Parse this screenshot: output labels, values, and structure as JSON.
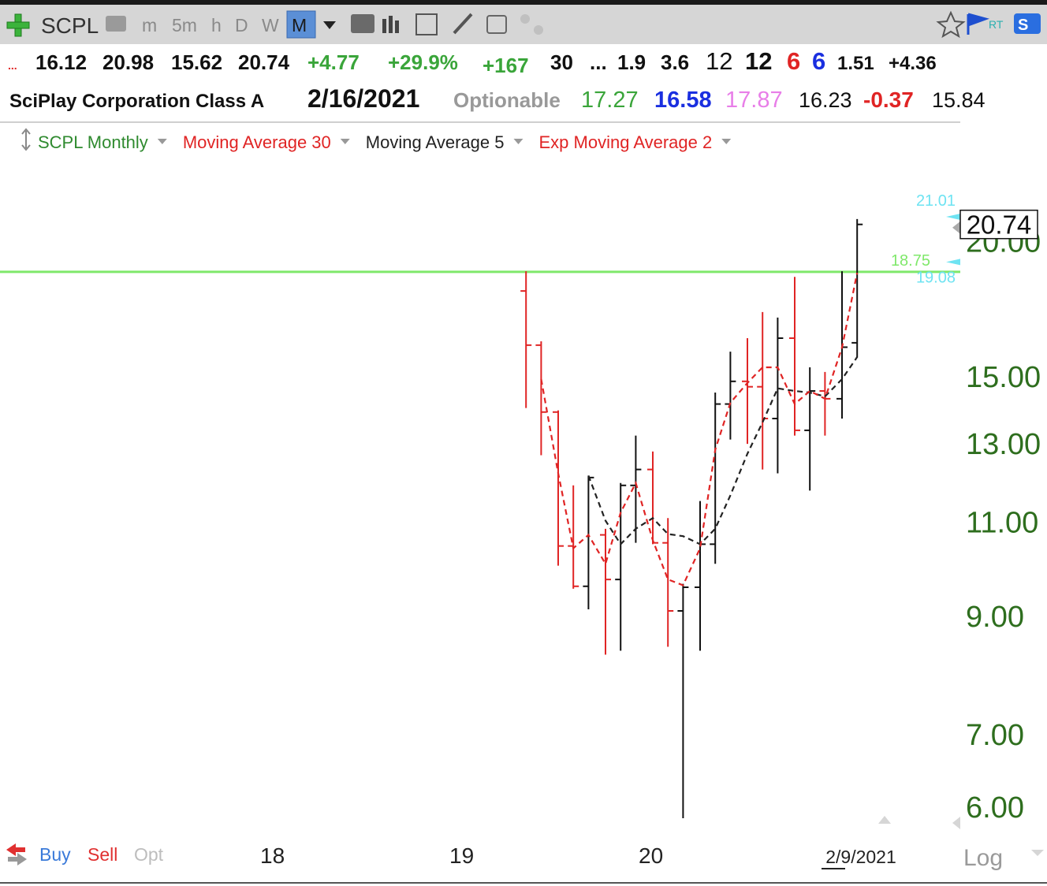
{
  "toolbar": {
    "symbol": "SCPL",
    "timeframes": [
      "m",
      "5m",
      "h",
      "D",
      "W",
      "M"
    ],
    "selected": 5,
    "rt": "RT"
  },
  "quote": {
    "line1": [
      "...",
      "16.12",
      "20.98",
      "15.62",
      "20.74",
      "+4.77",
      "+29.9%",
      "+167",
      "30",
      "...",
      "1.9",
      "3.6",
      "12",
      "12",
      "6",
      "6",
      "1.51",
      "+4.36"
    ],
    "line2": [
      "SciPlay Corporation Class A",
      "2/16/2021",
      "Optionable",
      "17.27",
      "16.58",
      "17.87",
      "16.23",
      "-0.37",
      "15.84"
    ]
  },
  "footer": {
    "buy": "Buy",
    "sell": "Sell",
    "opt": "Opt",
    "scale": "Log"
  },
  "chart_data": {
    "type": "ohlc",
    "price_name": "SCPL Monthly",
    "price_name_color": "#2f8a2f",
    "up_color": "#111111",
    "down_color": "#e02424",
    "log_scale": true,
    "x": [
      2019.34,
      2019.42,
      2019.51,
      2019.59,
      2019.67,
      2019.76,
      2019.84,
      2019.92,
      2020.01,
      2020.09,
      2020.17,
      2020.26,
      2020.34,
      2020.42,
      2020.51,
      2020.59,
      2020.67,
      2020.76,
      2020.84,
      2020.92,
      2021.01,
      2021.09
    ],
    "open": [
      18.0,
      16.04,
      13.91,
      10.46,
      9.6,
      10.71,
      9.74,
      11.9,
      12.31,
      10.53,
      9.11,
      9.58,
      10.5,
      14.15,
      14.85,
      14.68,
      13.72,
      16.28,
      13.38,
      14.55,
      14.31,
      16.12
    ],
    "high": [
      18.77,
      16.17,
      13.96,
      11.9,
      12.15,
      10.85,
      11.96,
      13.23,
      12.79,
      11.1,
      9.65,
      11.51,
      14.5,
      15.82,
      16.28,
      17.21,
      17.01,
      18.55,
      15.3,
      15.15,
      18.77,
      20.98
    ],
    "low": [
      14.03,
      12.69,
      10.03,
      9.55,
      9.14,
      8.3,
      8.37,
      10.53,
      10.5,
      8.44,
      5.86,
      8.37,
      10.07,
      13.12,
      13.0,
      12.31,
      12.21,
      13.23,
      11.77,
      13.23,
      13.72,
      15.62
    ],
    "close": [
      16.04,
      13.91,
      10.46,
      9.6,
      12.1,
      9.74,
      11.9,
      12.31,
      10.53,
      9.11,
      9.58,
      10.5,
      14.15,
      14.85,
      14.68,
      13.72,
      16.28,
      13.38,
      14.55,
      14.31,
      15.97,
      20.74
    ],
    "series": [
      {
        "name": "Moving Average 30",
        "color": "#e02424",
        "dashed": false,
        "values": [
          null,
          null,
          null,
          null,
          null,
          null,
          null,
          null,
          null,
          null,
          null,
          null,
          null,
          null,
          null,
          null,
          null,
          null,
          null,
          null,
          null,
          null
        ]
      },
      {
        "name": "Moving Average 5",
        "color": "#222222",
        "dashed": true,
        "values": [
          null,
          null,
          null,
          null,
          12.15,
          11.04,
          10.5,
          10.85,
          11.1,
          10.73,
          10.68,
          10.5,
          10.85,
          11.65,
          12.73,
          13.61,
          14.63,
          14.55,
          14.5,
          14.38,
          14.92,
          15.64
        ]
      },
      {
        "name": "Exp Moving Average 2",
        "color": "#e02424",
        "dashed": true,
        "values": [
          null,
          14.92,
          12.21,
          10.41,
          10.71,
          10.07,
          11.23,
          11.96,
          10.59,
          9.74,
          9.62,
          10.41,
          12.84,
          14.19,
          14.8,
          15.3,
          15.3,
          14.15,
          14.55,
          14.31,
          15.96,
          18.71
        ]
      }
    ],
    "hline": {
      "value": 18.75,
      "color": "#7fe86a"
    },
    "right_labels": [
      {
        "value": 21.01,
        "color": "#6ee3f2"
      },
      {
        "value": 19.08,
        "color": "#6ee3f2"
      }
    ],
    "last_price": 20.74,
    "xlim": [
      2016.56,
      2021.635
    ],
    "xticks": [
      {
        "value": 2018,
        "label": "18"
      },
      {
        "value": 2019,
        "label": "19"
      },
      {
        "value": 2020,
        "label": "20"
      },
      {
        "value": 2021.11,
        "label": "2/9/2021"
      }
    ],
    "ylim": [
      5.6,
      26
    ],
    "yticks": [
      {
        "value": 6,
        "label": "6.00"
      },
      {
        "value": 7,
        "label": "7.00"
      },
      {
        "value": 9,
        "label": "9.00"
      },
      {
        "value": 11,
        "label": "11.00"
      },
      {
        "value": 13,
        "label": "13.00"
      },
      {
        "value": 15,
        "label": "15.00"
      },
      {
        "value": 20,
        "label": "20.00"
      }
    ],
    "tick_color": "#2e6e1e"
  }
}
